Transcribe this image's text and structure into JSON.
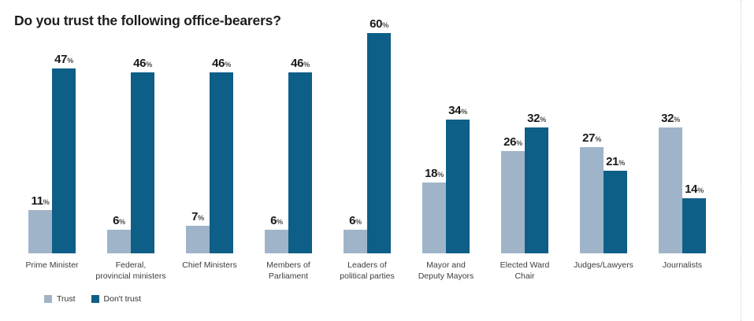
{
  "title": "Do you trust the following office-bearers?",
  "legend": {
    "trust_label": "Trust",
    "dont_trust_label": "Don't trust"
  },
  "colors": {
    "trust": "#9FB4C8",
    "dont_trust": "#0E5F88"
  },
  "chart_data": {
    "type": "bar",
    "title": "Do you trust the following office-bearers?",
    "categories": [
      "Prime Minister",
      "Federal,\nprovincial ministers",
      "Chief Ministers",
      "Members of\nParliament",
      "Leaders of\npolitical parties",
      "Mayor and\nDeputy Mayors",
      "Elected Ward\nChair",
      "Judges/Lawyers",
      "Journalists"
    ],
    "series": [
      {
        "name": "Trust",
        "color": "#9FB4C8",
        "values": [
          11,
          6,
          7,
          6,
          6,
          18,
          26,
          27,
          32
        ]
      },
      {
        "name": "Don't trust",
        "color": "#0E5F88",
        "values": [
          47,
          46,
          46,
          46,
          60,
          34,
          32,
          21,
          14
        ]
      }
    ],
    "unit": "%",
    "ylim": [
      0,
      60
    ],
    "grid": false,
    "value_labels": "above bars",
    "legend_position": "bottom-left"
  }
}
